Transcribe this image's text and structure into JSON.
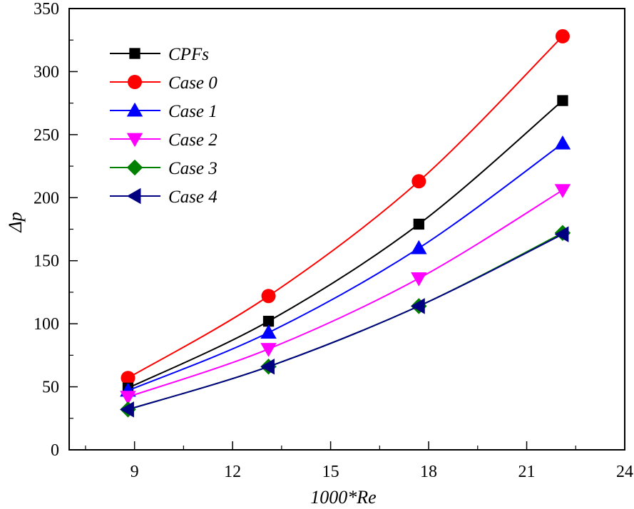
{
  "chart_data": {
    "type": "line",
    "title": "",
    "xlabel": "1000*Re",
    "ylabel": "Δp",
    "xlim": [
      7,
      24
    ],
    "ylim": [
      0,
      350
    ],
    "xticks": [
      9,
      12,
      15,
      18,
      21,
      24
    ],
    "xminor": [
      7.5,
      10.5,
      13.5,
      16.5,
      19.5,
      22.5
    ],
    "yticks": [
      0,
      50,
      100,
      150,
      200,
      250,
      300,
      350
    ],
    "yminor": [
      25,
      75,
      125,
      175,
      225,
      275,
      325
    ],
    "grid": false,
    "legend_position": "top-left",
    "x": [
      8.8,
      13.1,
      17.7,
      22.1
    ],
    "series": [
      {
        "name": "CPFs",
        "color": "#000000",
        "marker": "square",
        "values": [
          49,
          102,
          179,
          277
        ]
      },
      {
        "name": "Case 0",
        "color": "#ff0000",
        "marker": "circle",
        "values": [
          57,
          122,
          213,
          328
        ]
      },
      {
        "name": "Case 1",
        "color": "#0000ff",
        "marker": "triangle-up",
        "values": [
          47,
          93,
          160,
          243
        ]
      },
      {
        "name": "Case 2",
        "color": "#ff00ff",
        "marker": "triangle-down",
        "values": [
          42,
          80,
          136,
          206
        ]
      },
      {
        "name": "Case 3",
        "color": "#008000",
        "marker": "diamond",
        "values": [
          32,
          66,
          114,
          172
        ]
      },
      {
        "name": "Case 4",
        "color": "#000080",
        "marker": "triangle-left",
        "values": [
          32,
          66,
          114,
          171
        ]
      }
    ]
  }
}
